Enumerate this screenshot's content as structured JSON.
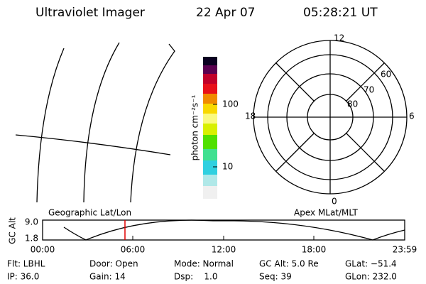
{
  "header": {
    "title": "Ultraviolet Imager",
    "date": "22 Apr 07",
    "time": "05:28:21 UT"
  },
  "colorbar": {
    "label": "photon cm⁻²s⁻¹",
    "ticks": [
      "100",
      "10"
    ]
  },
  "polar": {
    "mlt_labels": [
      "12",
      "6",
      "18",
      "0"
    ],
    "mlat_labels": [
      "60",
      "70",
      "80"
    ]
  },
  "timeline": {
    "left_title": "Geographic Lat/Lon",
    "right_title": "Apex MLat/MLT",
    "y_label": "GC Alt",
    "y_ticks": [
      "9.0",
      "1.8"
    ],
    "x_ticks": [
      "00:00",
      "06:00",
      "12:00",
      "18:00",
      "23:59"
    ]
  },
  "status": {
    "row1": [
      "Flt: LBHL",
      "Door: Open",
      "Mode: Normal",
      "GC Alt: 5.0 Re",
      "GLat: −51.4"
    ],
    "row2": [
      "IP: 36.0",
      "Gain: 14",
      "Dsp:    1.0",
      "Seq: 39",
      "GLon: 232.0"
    ]
  }
}
